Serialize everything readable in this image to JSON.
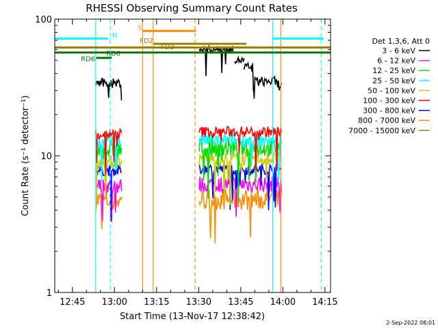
{
  "chart_data": {
    "type": "line",
    "title": "RHESSI Observing Summary Count Rates",
    "xlabel": "Start Time (13-Nov-17 12:38:42)",
    "ylabel": "Count Rate (s⁻¹ detector⁻¹)",
    "yscale": "log",
    "ylim": [
      1,
      100
    ],
    "xlim": [
      "12:38:42",
      "14:17:00"
    ],
    "grid": false,
    "legend_position": "right",
    "footer_date": "2-Sep-2022 08:01",
    "x_ticks": [
      "12:45",
      "13:00",
      "13:15",
      "13:30",
      "13:45",
      "14:00",
      "14:15"
    ],
    "x_tick_minutes": [
      765,
      780,
      795,
      810,
      825,
      840,
      855
    ],
    "y_ticks": [
      "1",
      "10",
      "100"
    ],
    "y_tick_values": [
      1,
      10,
      100
    ],
    "legend_header": "Det 1,3,6, Att 0",
    "series": [
      {
        "name": "3 - 6 keV",
        "color": "#000000",
        "segments": [
          {
            "t0": 773.3,
            "t1": 782.5,
            "level": 34,
            "amp": 0.035
          },
          {
            "t0": 810.2,
            "t1": 822.8,
            "level": 60,
            "amp": 0.025
          },
          {
            "t0": 822.8,
            "t1": 826.2,
            "level": 50,
            "amp": 0.025
          },
          {
            "t0": 826.2,
            "t1": 829.5,
            "level": 44,
            "amp": 0.04
          },
          {
            "t0": 829.5,
            "t1": 837.6,
            "level": 35,
            "amp": 0.035
          },
          {
            "t0": 837.6,
            "t1": 839.5,
            "level": 33,
            "amp": 0.04
          }
        ]
      },
      {
        "name": "6 - 12 keV",
        "color": "#ff00ff",
        "segments": [
          {
            "t0": 773.3,
            "t1": 782.5,
            "level": 6.0,
            "amp": 0.06
          },
          {
            "t0": 810.2,
            "t1": 839.5,
            "level": 6.2,
            "amp": 0.06
          }
        ]
      },
      {
        "name": "12 - 25 keV",
        "color": "#00dd00",
        "segments": [
          {
            "t0": 773.3,
            "t1": 782.5,
            "level": 11.0,
            "amp": 0.07
          },
          {
            "t0": 810.2,
            "t1": 839.5,
            "level": 11.5,
            "amp": 0.07
          }
        ]
      },
      {
        "name": "25 - 50 keV",
        "color": "#00ffff",
        "segments": [
          {
            "t0": 773.3,
            "t1": 782.5,
            "level": 12.5,
            "amp": 0.05
          },
          {
            "t0": 810.2,
            "t1": 839.5,
            "level": 13.0,
            "amp": 0.05
          }
        ]
      },
      {
        "name": "50 - 100 keV",
        "color": "#cccc00",
        "segments": [
          {
            "t0": 773.3,
            "t1": 782.5,
            "level": 9.0,
            "amp": 0.05
          },
          {
            "t0": 810.2,
            "t1": 839.5,
            "level": 9.5,
            "amp": 0.05
          }
        ]
      },
      {
        "name": "100 - 300 keV",
        "color": "#ff0000",
        "segments": [
          {
            "t0": 773.3,
            "t1": 782.5,
            "level": 14.5,
            "amp": 0.04
          },
          {
            "t0": 810.2,
            "t1": 839.5,
            "level": 15.0,
            "amp": 0.04
          }
        ]
      },
      {
        "name": "300 - 800 keV",
        "color": "#0000ff",
        "segments": [
          {
            "t0": 773.3,
            "t1": 782.5,
            "level": 7.8,
            "amp": 0.04
          },
          {
            "t0": 810.2,
            "t1": 839.5,
            "level": 8.0,
            "amp": 0.04
          }
        ]
      },
      {
        "name": "800 - 7000 keV",
        "color": "#ff8c00",
        "segments": [
          {
            "t0": 773.3,
            "t1": 782.5,
            "level": 4.7,
            "amp": 0.08
          },
          {
            "t0": 810.2,
            "t1": 839.5,
            "level": 4.8,
            "amp": 0.08
          }
        ]
      },
      {
        "name": "7000 - 15000 keV",
        "color": "#9b8000",
        "segments": []
      }
    ],
    "vertical_lines": [
      {
        "t": 773.3,
        "color": "#00ffff",
        "dashed": false
      },
      {
        "t": 778.5,
        "color": "#00ffff",
        "dashed": true
      },
      {
        "t": 790.0,
        "color": "#ff8c00",
        "dashed": false
      },
      {
        "t": 793.8,
        "color": "#ff8c00",
        "dashed": false
      },
      {
        "t": 808.7,
        "color": "#ff8c00",
        "dashed": true
      },
      {
        "t": 836.4,
        "color": "#00ffff",
        "dashed": false
      },
      {
        "t": 839.3,
        "color": "#ff8c00",
        "dashed": false
      },
      {
        "t": 853.7,
        "color": "#00ffff",
        "dashed": true
      }
    ],
    "flag_bars": [
      {
        "label": "N",
        "color": "#00ffff",
        "t0": 758.7,
        "t1": 777.7,
        "y": 72
      },
      {
        "label": "N",
        "color": "#00ffff",
        "t0": 836.4,
        "t1": 854.5,
        "y": 72
      },
      {
        "label": "S",
        "color": "#ff8c00",
        "t0": 790.0,
        "t1": 809.0,
        "y": 82
      },
      {
        "label": "FD2",
        "color": "#9b8000",
        "t0": 794.0,
        "t1": 827.0,
        "y": 66
      },
      {
        "label": "FD3",
        "color": "#9b8000",
        "t0": 758.7,
        "t1": 857.0,
        "y": 62
      },
      {
        "label": "RD6",
        "color": "#007700",
        "t0": 758.7,
        "t1": 857.0,
        "y": 57
      },
      {
        "label": "RD6",
        "color": "#007700",
        "t0": 773.5,
        "t1": 779.0,
        "y": 52
      }
    ]
  }
}
